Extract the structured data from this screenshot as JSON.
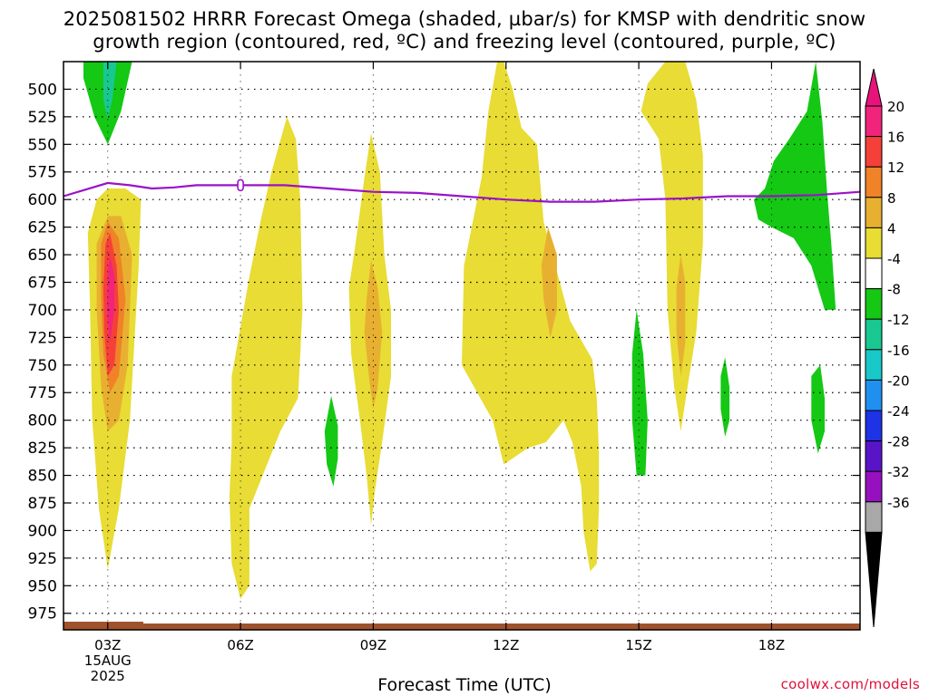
{
  "title_line1": "2025081502 HRRR Forecast Omega (shaded, µbar/s) for KMSP with dendritic snow",
  "title_line2": "growth region (contoured, red, ºC) and freezing level (contoured, purple, ºC)",
  "credit": "coolwx.com/models",
  "chart_data": {
    "type": "heatmap",
    "xlabel": "Forecast Time (UTC)",
    "ylabel": "",
    "x_ticks": [
      {
        "hour": 3,
        "label": "03Z",
        "sub": [
          "15AUG",
          "2025"
        ]
      },
      {
        "hour": 6,
        "label": "06Z"
      },
      {
        "hour": 9,
        "label": "09Z"
      },
      {
        "hour": 12,
        "label": "12Z"
      },
      {
        "hour": 15,
        "label": "15Z"
      },
      {
        "hour": 18,
        "label": "18Z"
      }
    ],
    "xlim_hours": [
      2,
      20
    ],
    "y_ticks": [
      500,
      525,
      550,
      575,
      600,
      625,
      650,
      675,
      700,
      725,
      750,
      775,
      800,
      825,
      850,
      875,
      900,
      925,
      950,
      975
    ],
    "ylim_hpa": [
      475,
      990
    ],
    "grid": true,
    "colorbar": {
      "labels": [
        "20",
        "16",
        "12",
        "8",
        "4",
        "-4",
        "-8",
        "-12",
        "-16",
        "-20",
        "-24",
        "-28",
        "-32",
        "-36"
      ],
      "colors": [
        "#f0247a",
        "#f5403a",
        "#f08228",
        "#e8b030",
        "#e8dc35",
        "#ffffff",
        "#14c814",
        "#18c890",
        "#18c8c8",
        "#2090f0",
        "#1e32e6",
        "#5a14c8",
        "#9610c0",
        "#a8a8a8"
      ],
      "top_arrow": "#e8137a",
      "bottom_arrow": "#000000"
    },
    "freezing_level_hpa": [
      {
        "hour": 2.0,
        "hpa": 597
      },
      {
        "hour": 2.5,
        "hpa": 591
      },
      {
        "hour": 3.0,
        "hpa": 585
      },
      {
        "hour": 3.5,
        "hpa": 587
      },
      {
        "hour": 4.0,
        "hpa": 590
      },
      {
        "hour": 4.5,
        "hpa": 589
      },
      {
        "hour": 5.0,
        "hpa": 587
      },
      {
        "hour": 6.0,
        "hpa": 587
      },
      {
        "hour": 7.0,
        "hpa": 587
      },
      {
        "hour": 8.0,
        "hpa": 590
      },
      {
        "hour": 9.0,
        "hpa": 593
      },
      {
        "hour": 10.0,
        "hpa": 594
      },
      {
        "hour": 11.0,
        "hpa": 597
      },
      {
        "hour": 12.0,
        "hpa": 600
      },
      {
        "hour": 13.0,
        "hpa": 602
      },
      {
        "hour": 14.0,
        "hpa": 602
      },
      {
        "hour": 15.0,
        "hpa": 600
      },
      {
        "hour": 16.0,
        "hpa": 599
      },
      {
        "hour": 17.0,
        "hpa": 597
      },
      {
        "hour": 18.0,
        "hpa": 597
      },
      {
        "hour": 19.0,
        "hpa": 596
      },
      {
        "hour": 20.0,
        "hpa": 593
      }
    ],
    "omega_regions": [
      {
        "level": "-8",
        "color": "#14c814",
        "points": [
          [
            2.45,
            475
          ],
          [
            3.55,
            475
          ],
          [
            3.3,
            520
          ],
          [
            3.0,
            550
          ],
          [
            2.7,
            525
          ],
          [
            2.45,
            490
          ]
        ]
      },
      {
        "level": "-12",
        "color": "#18c890",
        "points": [
          [
            2.9,
            475
          ],
          [
            3.2,
            475
          ],
          [
            3.1,
            510
          ],
          [
            3.0,
            527
          ],
          [
            2.9,
            510
          ]
        ]
      },
      {
        "level": "4",
        "color": "#e8dc35",
        "points": [
          [
            2.55,
            630
          ],
          [
            2.75,
            600
          ],
          [
            3.0,
            590
          ],
          [
            3.4,
            590
          ],
          [
            3.75,
            600
          ],
          [
            3.7,
            660
          ],
          [
            3.5,
            800
          ],
          [
            3.25,
            880
          ],
          [
            3.0,
            935
          ],
          [
            2.8,
            880
          ],
          [
            2.65,
            800
          ],
          [
            2.6,
            700
          ]
        ]
      },
      {
        "level": "8",
        "color": "#e8b030",
        "points": [
          [
            2.75,
            640
          ],
          [
            3.0,
            615
          ],
          [
            3.3,
            615
          ],
          [
            3.55,
            650
          ],
          [
            3.45,
            750
          ],
          [
            3.25,
            800
          ],
          [
            3.0,
            810
          ],
          [
            2.85,
            770
          ],
          [
            2.75,
            700
          ]
        ]
      },
      {
        "level": "12",
        "color": "#f08228",
        "points": [
          [
            2.85,
            640
          ],
          [
            3.0,
            620
          ],
          [
            3.25,
            635
          ],
          [
            3.4,
            690
          ],
          [
            3.25,
            760
          ],
          [
            3.05,
            775
          ],
          [
            2.9,
            740
          ],
          [
            2.85,
            690
          ]
        ]
      },
      {
        "level": "16",
        "color": "#f5403a",
        "points": [
          [
            2.95,
            640
          ],
          [
            3.05,
            630
          ],
          [
            3.2,
            660
          ],
          [
            3.25,
            700
          ],
          [
            3.15,
            750
          ],
          [
            3.0,
            760
          ],
          [
            2.92,
            720
          ],
          [
            2.9,
            680
          ]
        ]
      },
      {
        "level": "20",
        "color": "#f0247a",
        "points": [
          [
            3.0,
            665
          ],
          [
            3.05,
            650
          ],
          [
            3.15,
            670
          ],
          [
            3.15,
            700
          ],
          [
            3.05,
            730
          ],
          [
            2.98,
            700
          ]
        ]
      },
      {
        "level": "4",
        "color": "#e8dc35",
        "points": [
          [
            7.05,
            525
          ],
          [
            7.25,
            545
          ],
          [
            7.35,
            600
          ],
          [
            7.4,
            700
          ],
          [
            7.3,
            780
          ],
          [
            6.9,
            810
          ],
          [
            6.6,
            840
          ],
          [
            6.2,
            880
          ],
          [
            6.2,
            950
          ],
          [
            6.0,
            962
          ],
          [
            5.8,
            930
          ],
          [
            5.75,
            870
          ],
          [
            5.8,
            820
          ],
          [
            5.8,
            760
          ],
          [
            6.2,
            670
          ],
          [
            6.45,
            620
          ],
          [
            6.7,
            575
          ]
        ]
      },
      {
        "level": "4",
        "color": "#e8dc35",
        "points": [
          [
            8.95,
            540
          ],
          [
            9.15,
            575
          ],
          [
            9.25,
            650
          ],
          [
            9.4,
            700
          ],
          [
            9.4,
            760
          ],
          [
            9.2,
            820
          ],
          [
            9.05,
            860
          ],
          [
            8.95,
            895
          ],
          [
            8.85,
            850
          ],
          [
            8.7,
            800
          ],
          [
            8.5,
            740
          ],
          [
            8.45,
            680
          ],
          [
            8.6,
            640
          ],
          [
            8.8,
            580
          ]
        ]
      },
      {
        "level": "8",
        "color": "#e8b030",
        "points": [
          [
            8.95,
            655
          ],
          [
            9.1,
            680
          ],
          [
            9.2,
            720
          ],
          [
            9.1,
            770
          ],
          [
            9.0,
            790
          ],
          [
            8.9,
            760
          ],
          [
            8.8,
            720
          ],
          [
            8.85,
            690
          ]
        ]
      },
      {
        "level": "-8",
        "color": "#14c814",
        "points": [
          [
            8.05,
            778
          ],
          [
            8.2,
            805
          ],
          [
            8.2,
            835
          ],
          [
            8.1,
            860
          ],
          [
            7.95,
            840
          ],
          [
            7.9,
            810
          ]
        ]
      },
      {
        "level": "4",
        "color": "#e8dc35",
        "points": [
          [
            11.95,
            475
          ],
          [
            12.15,
            500
          ],
          [
            12.35,
            535
          ],
          [
            12.7,
            550
          ],
          [
            12.85,
            620
          ],
          [
            13.45,
            710
          ],
          [
            13.95,
            745
          ],
          [
            14.05,
            780
          ],
          [
            14.1,
            830
          ],
          [
            14.1,
            880
          ],
          [
            14.05,
            930
          ],
          [
            13.9,
            937
          ],
          [
            13.75,
            900
          ],
          [
            13.7,
            860
          ],
          [
            13.5,
            820
          ],
          [
            13.3,
            800
          ],
          [
            12.9,
            820
          ],
          [
            12.5,
            825
          ],
          [
            11.95,
            840
          ],
          [
            11.7,
            800
          ],
          [
            11.0,
            750
          ],
          [
            11.05,
            660
          ],
          [
            11.25,
            620
          ],
          [
            11.45,
            580
          ],
          [
            11.6,
            520
          ],
          [
            11.8,
            475
          ]
        ]
      },
      {
        "level": "8",
        "color": "#e8b030",
        "points": [
          [
            12.95,
            625
          ],
          [
            13.15,
            650
          ],
          [
            13.15,
            700
          ],
          [
            13.0,
            725
          ],
          [
            12.85,
            690
          ],
          [
            12.8,
            660
          ]
        ]
      },
      {
        "level": "4",
        "color": "#e8dc35",
        "points": [
          [
            15.6,
            475
          ],
          [
            16.05,
            475
          ],
          [
            16.3,
            510
          ],
          [
            16.45,
            560
          ],
          [
            16.45,
            640
          ],
          [
            16.3,
            720
          ],
          [
            16.1,
            770
          ],
          [
            15.95,
            810
          ],
          [
            15.8,
            770
          ],
          [
            15.65,
            700
          ],
          [
            15.6,
            600
          ],
          [
            15.45,
            545
          ],
          [
            15.05,
            520
          ],
          [
            15.2,
            495
          ]
        ]
      },
      {
        "level": "8",
        "color": "#e8b030",
        "points": [
          [
            15.95,
            650
          ],
          [
            16.05,
            675
          ],
          [
            16.05,
            730
          ],
          [
            15.95,
            760
          ],
          [
            15.85,
            720
          ],
          [
            15.85,
            680
          ]
        ]
      },
      {
        "level": "-8",
        "color": "#14c814",
        "points": [
          [
            14.95,
            700
          ],
          [
            15.1,
            740
          ],
          [
            15.2,
            800
          ],
          [
            15.15,
            850
          ],
          [
            14.95,
            850
          ],
          [
            14.85,
            800
          ],
          [
            14.85,
            740
          ]
        ]
      },
      {
        "level": "-8",
        "color": "#14c814",
        "points": [
          [
            16.95,
            743
          ],
          [
            17.05,
            770
          ],
          [
            17.05,
            800
          ],
          [
            16.95,
            815
          ],
          [
            16.85,
            790
          ],
          [
            16.85,
            760
          ]
        ]
      },
      {
        "level": "-8",
        "color": "#14c814",
        "points": [
          [
            19.0,
            475
          ],
          [
            19.15,
            530
          ],
          [
            19.25,
            590
          ],
          [
            19.35,
            640
          ],
          [
            19.45,
            700
          ],
          [
            19.2,
            700
          ],
          [
            18.9,
            660
          ],
          [
            18.5,
            635
          ],
          [
            18.0,
            625
          ],
          [
            17.7,
            618
          ],
          [
            17.6,
            600
          ],
          [
            17.85,
            590
          ],
          [
            18.05,
            565
          ],
          [
            18.4,
            545
          ],
          [
            18.8,
            520
          ]
        ]
      },
      {
        "level": "-8",
        "color": "#14c814",
        "points": [
          [
            19.1,
            750
          ],
          [
            19.2,
            780
          ],
          [
            19.2,
            810
          ],
          [
            19.05,
            830
          ],
          [
            18.9,
            800
          ],
          [
            18.9,
            760
          ]
        ]
      }
    ]
  }
}
